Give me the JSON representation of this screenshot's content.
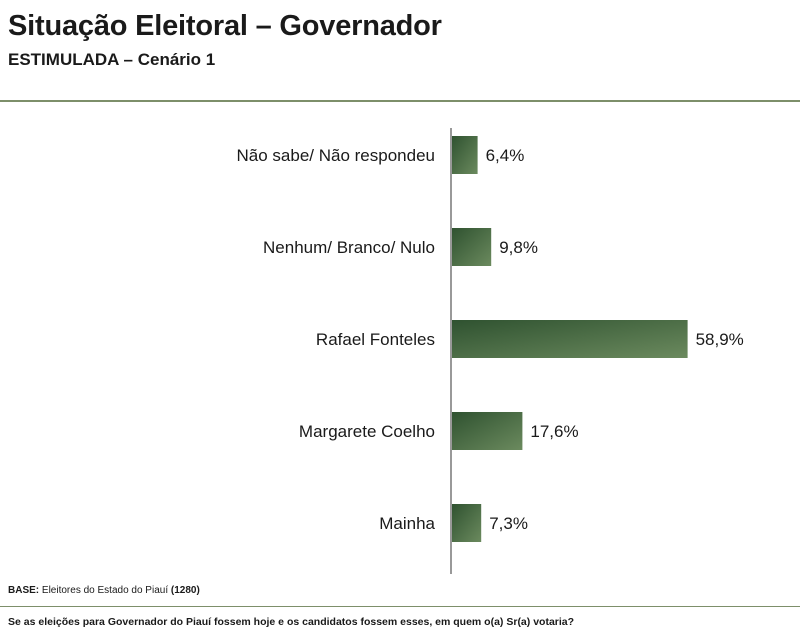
{
  "header": {
    "title": "Situação Eleitoral – Governador",
    "subtitle": "ESTIMULADA – Cenário 1"
  },
  "footer": {
    "base_label": "BASE:",
    "base_text": "Eleitores do Estado do Piauí",
    "base_count": "(1280)",
    "question": "Se as eleições para Governador do Piauí fossem hoje e os candidatos fossem esses, em quem o(a) Sr(a) votaria?"
  },
  "chart_data": {
    "type": "bar",
    "orientation": "horizontal",
    "title": "Situação Eleitoral – Governador",
    "subtitle": "ESTIMULADA – Cenário 1",
    "categories": [
      "Não sabe/ Não respondeu",
      "Nenhum/ Branco/ Nulo",
      "Rafael Fonteles",
      "Margarete Coelho",
      "Mainha"
    ],
    "values": [
      6.4,
      9.8,
      58.9,
      17.6,
      7.3
    ],
    "labels": [
      "6,4%",
      "9,8%",
      "58,9%",
      "17,6%",
      "7,3%"
    ],
    "xlim": [
      0,
      100
    ],
    "grid": false,
    "legend": "none",
    "colors": {
      "bar_dark": "#2f5230",
      "bar_light": "#6b8a5e",
      "axis": "#333333"
    }
  }
}
